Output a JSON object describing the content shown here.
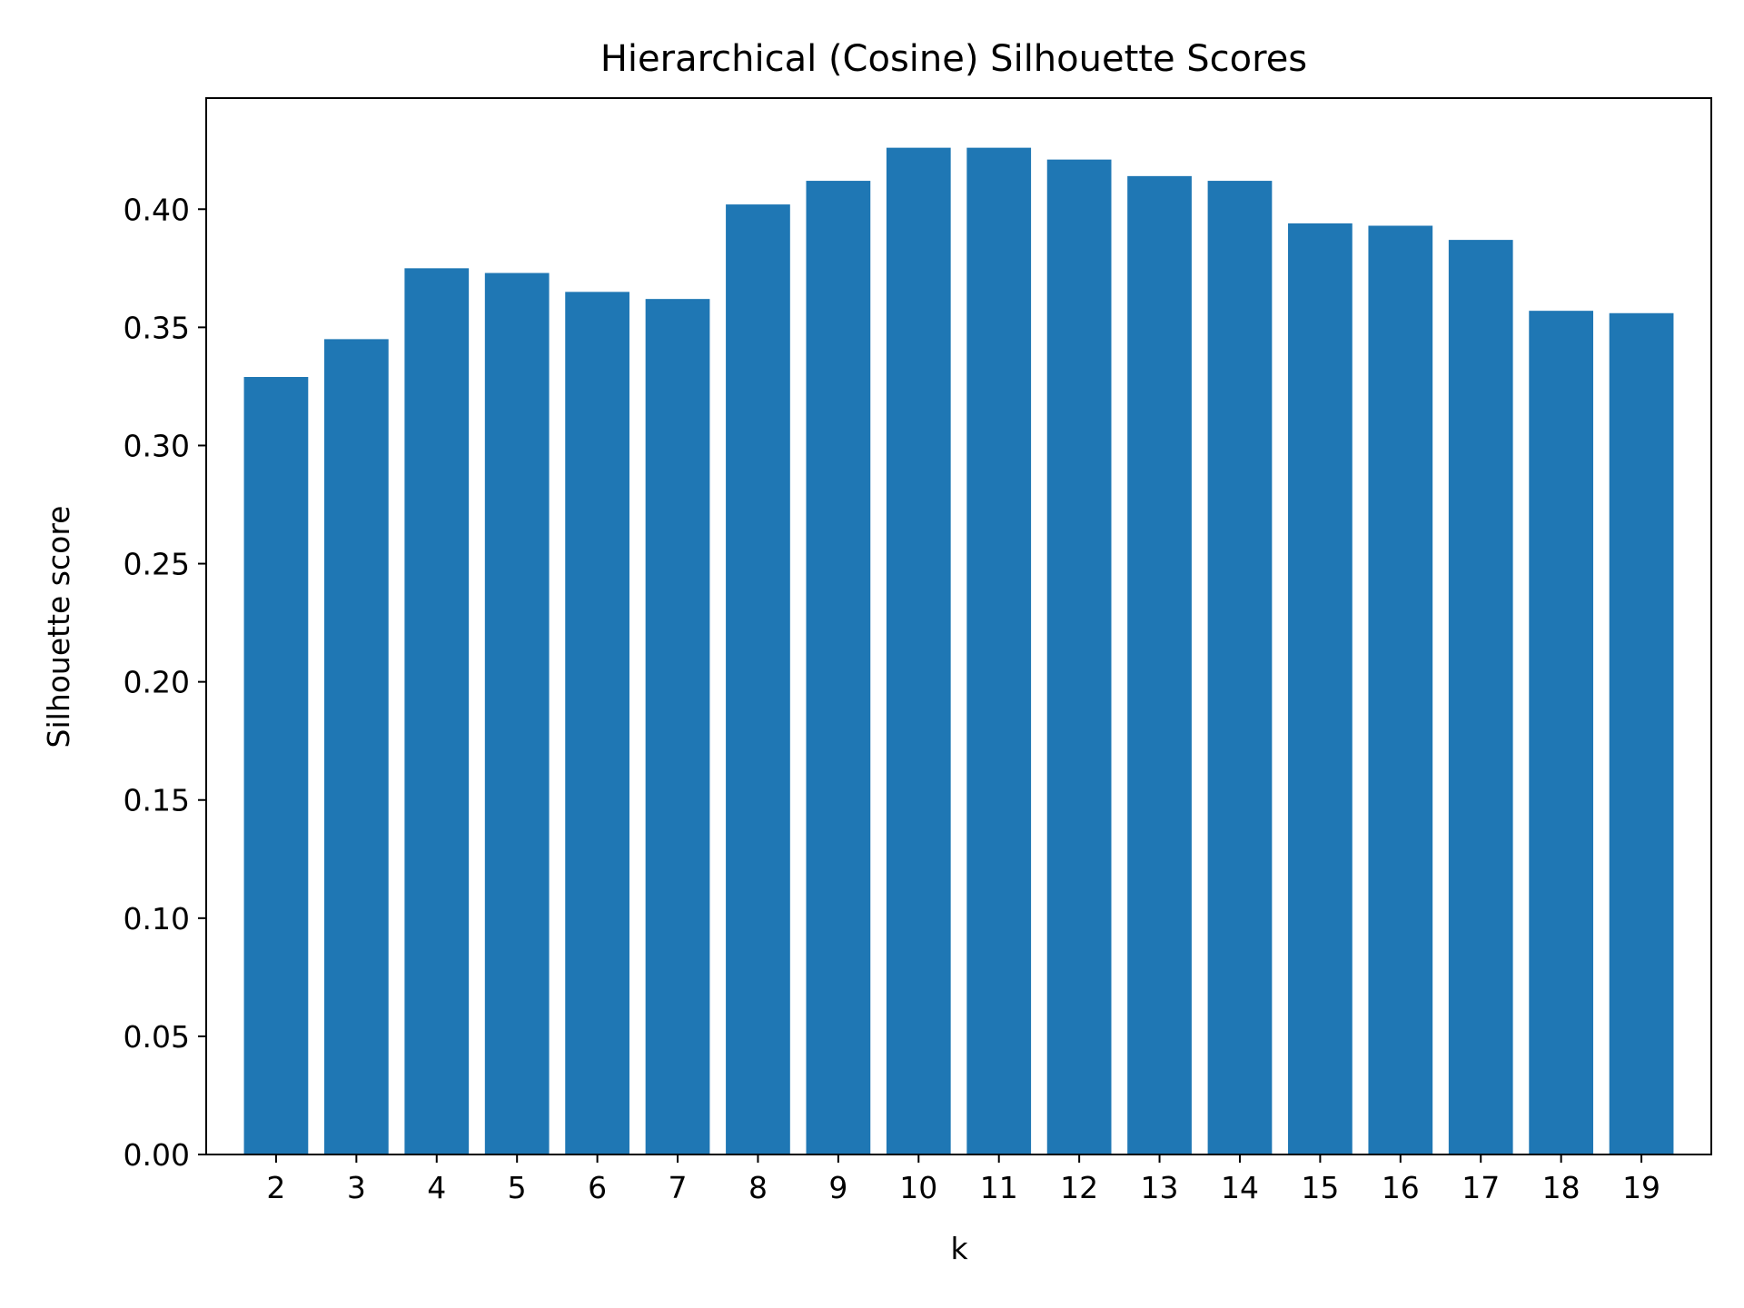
{
  "chart_data": {
    "type": "bar",
    "title": "Hierarchical (Cosine) Silhouette Scores",
    "xlabel": "k",
    "ylabel": "Silhouette score",
    "categories": [
      "2",
      "3",
      "4",
      "5",
      "6",
      "7",
      "8",
      "9",
      "10",
      "11",
      "12",
      "13",
      "14",
      "15",
      "16",
      "17",
      "18",
      "19"
    ],
    "values": [
      0.329,
      0.345,
      0.375,
      0.373,
      0.365,
      0.362,
      0.402,
      0.412,
      0.426,
      0.426,
      0.421,
      0.414,
      0.412,
      0.394,
      0.393,
      0.387,
      0.357,
      0.356
    ],
    "ylim": [
      0,
      0.447
    ],
    "yticks": [
      0.0,
      0.05,
      0.1,
      0.15,
      0.2,
      0.25,
      0.3,
      0.35,
      0.4
    ],
    "ytick_labels": [
      "0.00",
      "0.05",
      "0.10",
      "0.15",
      "0.20",
      "0.25",
      "0.30",
      "0.35",
      "0.40"
    ],
    "bar_color": "#1f77b4",
    "grid": false,
    "legend": "none"
  }
}
